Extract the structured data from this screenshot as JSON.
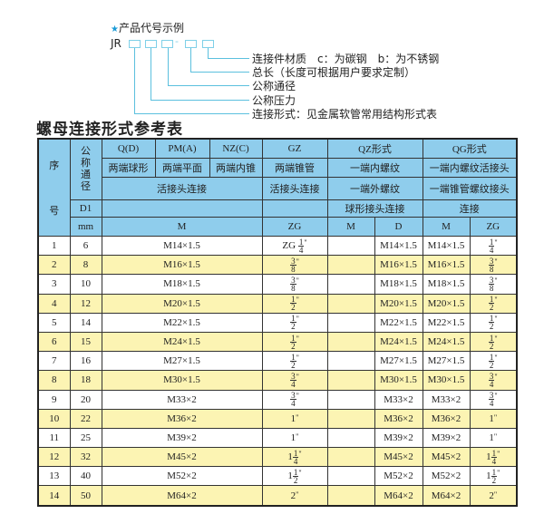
{
  "diagram": {
    "heading": "产品代号示例",
    "star_icon": "star-icon",
    "code_prefix": "JR",
    "dash": "-",
    "labels": [
      "连接件材质　c：为碳钢　b：为不锈钢",
      "总长（长度可根据用户要求定制）",
      "公称通径",
      "公称压力",
      "连接形式：见金属软管常用结构形式表"
    ]
  },
  "title": "螺母连接形式参考表",
  "colors": {
    "header_bg": "#8fcdec",
    "stripe_bg": "#fcf4b3",
    "accent": "#1a9ad6"
  },
  "table": {
    "header": {
      "seq_top": "序",
      "seq_bottom": "号",
      "nominal": "公称通径",
      "r1": [
        "Q(D)",
        "PM(A)",
        "NZ(C)",
        "GZ",
        "QZ形式",
        "QG形式"
      ],
      "r2": [
        "两端球形",
        "两端平面",
        "两端内锥",
        "两端锥管",
        "一端内螺纹",
        "一端内螺纹活接头"
      ],
      "r3": [
        "活接头连接",
        "活接头连接",
        "一端外螺纹",
        "一端锥管螺纹接头"
      ],
      "r4": [
        "D1",
        "",
        "",
        "球形接头连接",
        "连接"
      ],
      "r5": [
        "mm",
        "M",
        "ZG",
        "M",
        "D",
        "M",
        "ZG"
      ]
    },
    "rows": [
      {
        "no": "1",
        "d1": "6",
        "m": "M14×1.5",
        "zg": {
          "pre": "ZG",
          "w": "",
          "n": "1",
          "d": "4"
        },
        "qz_m": "",
        "qz_d": "M14×1.5",
        "qg_m": "M14×1.5",
        "qg_zg": {
          "pre": "",
          "w": "",
          "n": "1",
          "d": "4"
        }
      },
      {
        "no": "2",
        "d1": "8",
        "m": "M16×1.5",
        "zg": {
          "pre": "",
          "w": "",
          "n": "3",
          "d": "8"
        },
        "qz_m": "",
        "qz_d": "M16×1.5",
        "qg_m": "M16×1.5",
        "qg_zg": {
          "pre": "",
          "w": "",
          "n": "3",
          "d": "8"
        }
      },
      {
        "no": "3",
        "d1": "10",
        "m": "M18×1.5",
        "zg": {
          "pre": "",
          "w": "",
          "n": "3",
          "d": "8"
        },
        "qz_m": "",
        "qz_d": "M18×1.5",
        "qg_m": "M18×1.5",
        "qg_zg": {
          "pre": "",
          "w": "",
          "n": "3",
          "d": "8"
        }
      },
      {
        "no": "4",
        "d1": "12",
        "m": "M20×1.5",
        "zg": {
          "pre": "",
          "w": "",
          "n": "1",
          "d": "2"
        },
        "qz_m": "",
        "qz_d": "M20×1.5",
        "qg_m": "M20×1.5",
        "qg_zg": {
          "pre": "",
          "w": "",
          "n": "1",
          "d": "2"
        }
      },
      {
        "no": "5",
        "d1": "14",
        "m": "M22×1.5",
        "zg": {
          "pre": "",
          "w": "",
          "n": "1",
          "d": "2"
        },
        "qz_m": "",
        "qz_d": "M22×1.5",
        "qg_m": "M22×1.5",
        "qg_zg": {
          "pre": "",
          "w": "",
          "n": "1",
          "d": "2"
        }
      },
      {
        "no": "6",
        "d1": "15",
        "m": "M24×1.5",
        "zg": {
          "pre": "",
          "w": "",
          "n": "1",
          "d": "2"
        },
        "qz_m": "",
        "qz_d": "M24×1.5",
        "qg_m": "M24×1.5",
        "qg_zg": {
          "pre": "",
          "w": "",
          "n": "1",
          "d": "2"
        }
      },
      {
        "no": "7",
        "d1": "16",
        "m": "M27×1.5",
        "zg": {
          "pre": "",
          "w": "",
          "n": "1",
          "d": "2"
        },
        "qz_m": "",
        "qz_d": "M27×1.5",
        "qg_m": "M27×1.5",
        "qg_zg": {
          "pre": "",
          "w": "",
          "n": "1",
          "d": "2"
        }
      },
      {
        "no": "8",
        "d1": "18",
        "m": "M30×1.5",
        "zg": {
          "pre": "",
          "w": "",
          "n": "3",
          "d": "4"
        },
        "qz_m": "",
        "qz_d": "M30×1.5",
        "qg_m": "M30×1.5",
        "qg_zg": {
          "pre": "",
          "w": "",
          "n": "3",
          "d": "4"
        }
      },
      {
        "no": "9",
        "d1": "20",
        "m": "M33×2",
        "zg": {
          "pre": "",
          "w": "",
          "n": "3",
          "d": "4"
        },
        "qz_m": "",
        "qz_d": "M33×2",
        "qg_m": "M33×2",
        "qg_zg": {
          "pre": "",
          "w": "",
          "n": "3",
          "d": "4"
        }
      },
      {
        "no": "10",
        "d1": "22",
        "m": "M36×2",
        "zg": {
          "pre": "",
          "w": "1",
          "n": "",
          "d": ""
        },
        "qz_m": "",
        "qz_d": "M36×2",
        "qg_m": "M36×2",
        "qg_zg": {
          "pre": "",
          "w": "1",
          "n": "",
          "d": ""
        }
      },
      {
        "no": "11",
        "d1": "25",
        "m": "M39×2",
        "zg": {
          "pre": "",
          "w": "1",
          "n": "",
          "d": ""
        },
        "qz_m": "",
        "qz_d": "M39×2",
        "qg_m": "M39×2",
        "qg_zg": {
          "pre": "",
          "w": "1",
          "n": "",
          "d": ""
        }
      },
      {
        "no": "12",
        "d1": "32",
        "m": "M45×2",
        "zg": {
          "pre": "",
          "w": "1",
          "n": "1",
          "d": "4"
        },
        "qz_m": "",
        "qz_d": "M45×2",
        "qg_m": "M45×2",
        "qg_zg": {
          "pre": "",
          "w": "1",
          "n": "1",
          "d": "4"
        }
      },
      {
        "no": "13",
        "d1": "40",
        "m": "M52×2",
        "zg": {
          "pre": "",
          "w": "1",
          "n": "1",
          "d": "2"
        },
        "qz_m": "",
        "qz_d": "M52×2",
        "qg_m": "M52×2",
        "qg_zg": {
          "pre": "",
          "w": "1",
          "n": "1",
          "d": "2"
        }
      },
      {
        "no": "14",
        "d1": "50",
        "m": "M64×2",
        "zg": {
          "pre": "",
          "w": "2",
          "n": "",
          "d": ""
        },
        "qz_m": "",
        "qz_d": "M64×2",
        "qg_m": "M64×2",
        "qg_zg": {
          "pre": "",
          "w": "2",
          "n": "",
          "d": ""
        }
      }
    ],
    "inch_mark": "\""
  }
}
